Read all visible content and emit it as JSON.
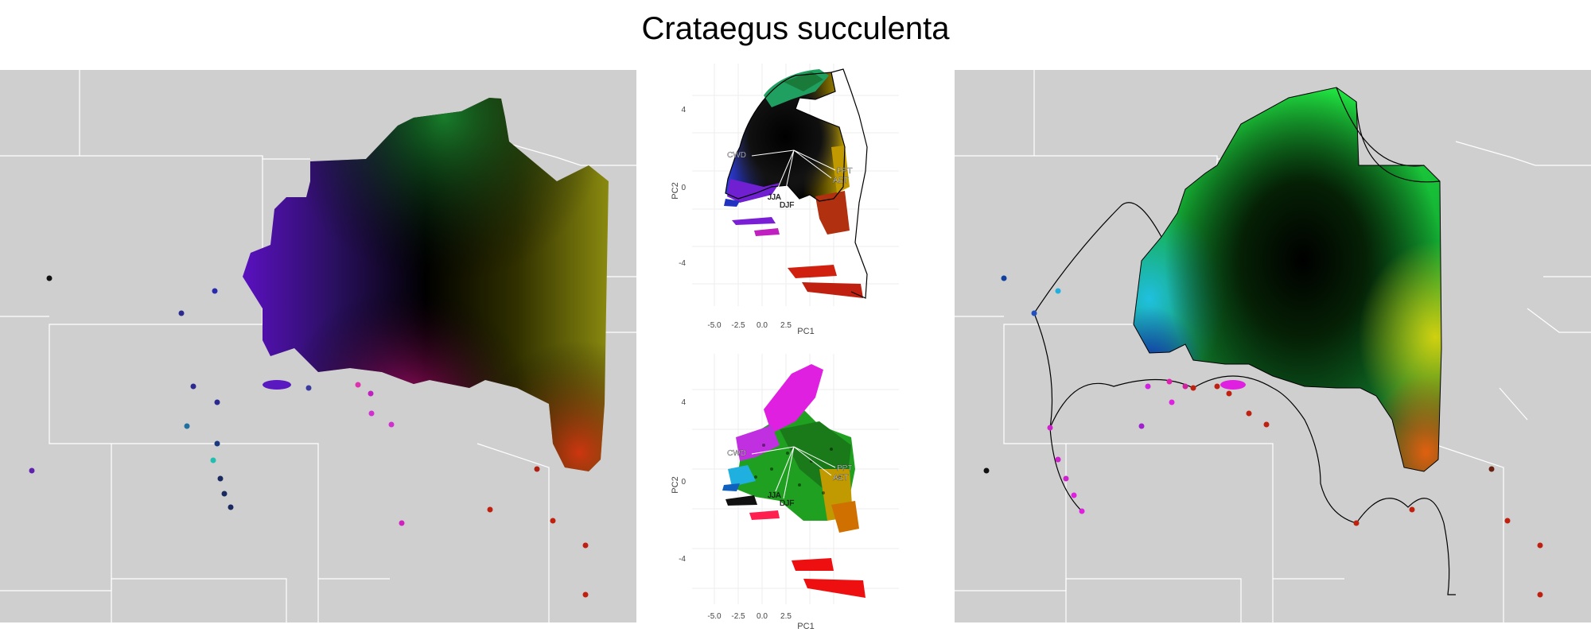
{
  "title": "Crataegus succulenta",
  "colors": {
    "map_background": "#cfcfcf",
    "state_lines": "#ffffff",
    "purple": "#7a1fd6",
    "magenta": "#e020e0",
    "red": "#dd2a12",
    "olive": "#a0a010",
    "green": "#18a030",
    "cyan": "#20c0d0",
    "blue": "#2030c0"
  },
  "pca_labels": {
    "xlabel": "PC1",
    "ylabel": "PC2",
    "xticks": [
      "-5.0",
      "-2.5",
      "0.0",
      "2.5"
    ],
    "yticks": [
      "4",
      "0",
      "-4"
    ],
    "vectors": [
      "CWD",
      "PPT",
      "AET",
      "JJA",
      "DJF"
    ]
  },
  "chart_data": [
    {
      "type": "map",
      "name": "left-map",
      "description_points": [
        {
          "color": "#111111",
          "count": 1
        },
        {
          "color": "#2a2a90",
          "count": 4
        },
        {
          "color": "#c020c0",
          "count": 4
        },
        {
          "color": "#c02010",
          "count": 4
        },
        {
          "color": "#20c0b0",
          "count": 1
        }
      ]
    },
    {
      "type": "scatter",
      "name": "pca-top",
      "xlabel": "PC1",
      "ylabel": "PC2",
      "xlim": [
        -5.5,
        4.5
      ],
      "ylim": [
        -6.5,
        6.5
      ],
      "xticks": [
        -5.0,
        -2.5,
        0.0,
        2.5
      ],
      "yticks": [
        -4,
        0,
        4
      ],
      "vectors": [
        {
          "label": "CWD",
          "x": -3.0,
          "y": -0.4
        },
        {
          "label": "PPT",
          "x": 3.2,
          "y": -1.3
        },
        {
          "label": "AET",
          "x": 3.0,
          "y": -1.9
        },
        {
          "label": "JJA",
          "x": -1.8,
          "y": -3.0
        },
        {
          "label": "DJF",
          "x": -0.8,
          "y": -3.4
        }
      ]
    },
    {
      "type": "scatter",
      "name": "pca-bottom",
      "xlabel": "PC1",
      "ylabel": "PC2",
      "xlim": [
        -5.5,
        4.5
      ],
      "ylim": [
        -6.5,
        6.5
      ],
      "xticks": [
        -5.0,
        -2.5,
        0.0,
        2.5
      ],
      "yticks": [
        -4,
        0,
        4
      ],
      "vectors": [
        {
          "label": "CWD",
          "x": -3.0,
          "y": -0.4
        },
        {
          "label": "PPT",
          "x": 3.2,
          "y": -1.3
        },
        {
          "label": "AET",
          "x": 3.0,
          "y": -1.9
        },
        {
          "label": "JJA",
          "x": -1.8,
          "y": -3.0
        },
        {
          "label": "DJF",
          "x": -0.8,
          "y": -3.4
        }
      ]
    },
    {
      "type": "map",
      "name": "right-map"
    }
  ]
}
